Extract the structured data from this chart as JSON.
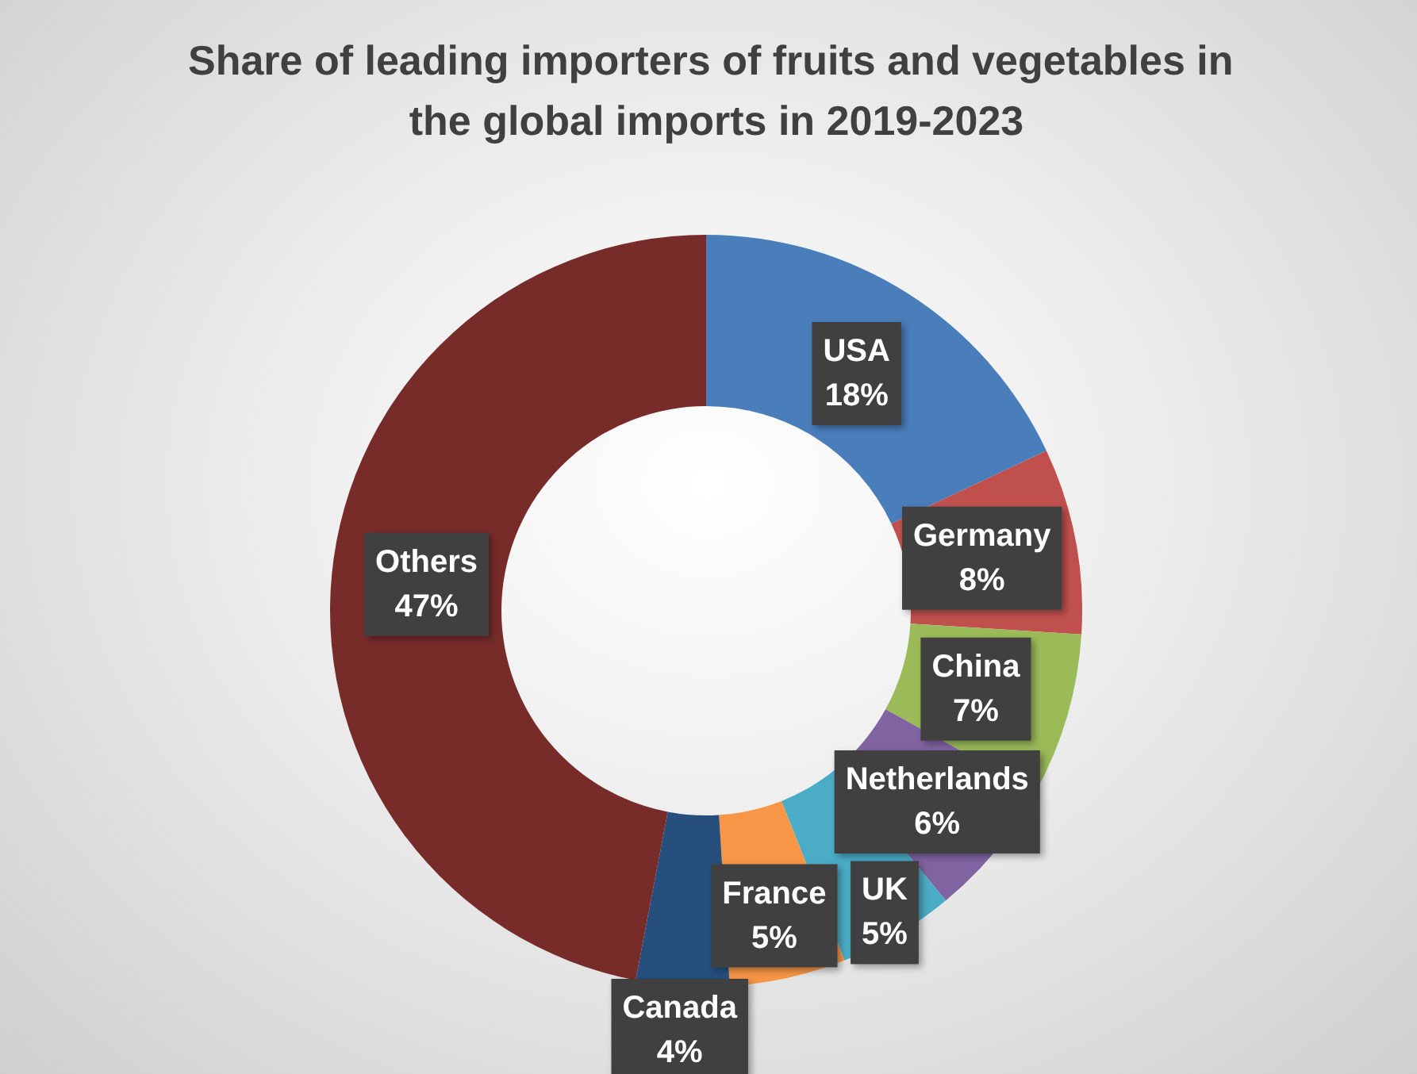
{
  "chart_data": {
    "type": "donut",
    "title": "Share of leading importers of fruits and vegetables in the global imports in 2019-2023",
    "categories": [
      "USA",
      "Germany",
      "China",
      "Netherlands",
      "UK",
      "France",
      "Canada",
      "Others"
    ],
    "values": [
      18,
      8,
      7,
      6,
      5,
      5,
      4,
      47
    ],
    "value_labels": [
      "18%",
      "8%",
      "7%",
      "6%",
      "5%",
      "5%",
      "4%",
      "47%"
    ],
    "colors": [
      "#4a7ebb",
      "#c0504d",
      "#9bbb59",
      "#8064a2",
      "#4bacc6",
      "#f79646",
      "#264f7e",
      "#772c2a"
    ]
  }
}
